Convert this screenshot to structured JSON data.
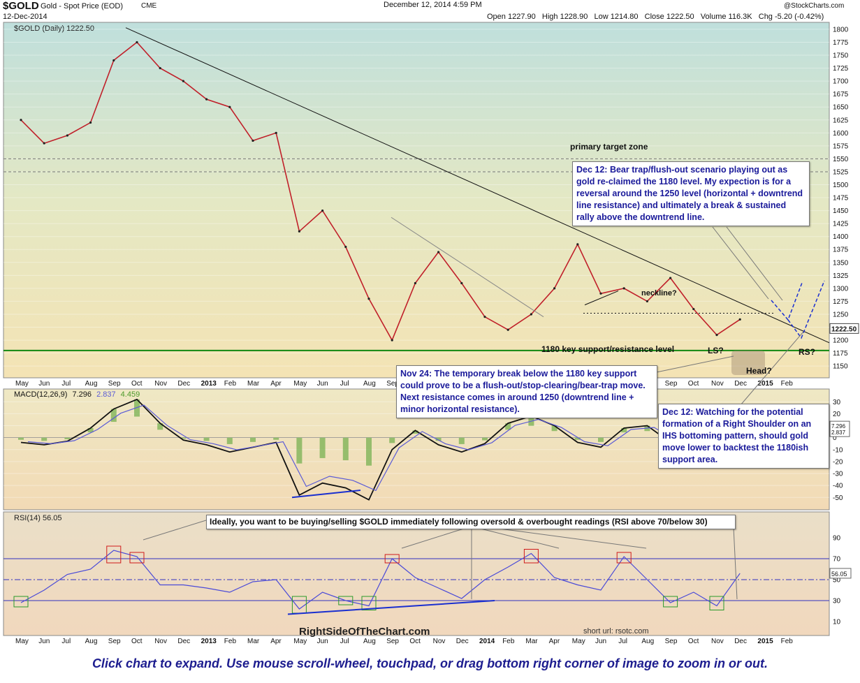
{
  "header": {
    "ticker": "$GOLD",
    "name": "Gold - Spot Price (EOD)",
    "exchange": "CME",
    "date": "12-Dec-2014",
    "timestamp": "December 12, 2014 4:59 PM",
    "source": "@StockCharts.com",
    "ohlc": "Open 1227.90   High 1228.90   Low 1214.80   Close 1222.50   Volume 116.3K   Chg -5.20 (-0.42%)"
  },
  "chart_data": [
    {
      "type": "line",
      "title": "$GOLD (Daily) 1222.50",
      "y_ticks": [
        1150,
        1175,
        1200,
        1225,
        1250,
        1275,
        1300,
        1325,
        1350,
        1375,
        1400,
        1425,
        1450,
        1475,
        1500,
        1525,
        1550,
        1575,
        1600,
        1625,
        1650,
        1675,
        1700,
        1725,
        1750,
        1775,
        1800
      ],
      "ylim": [
        1130,
        1808
      ],
      "last_value_label": "1222.50",
      "x_labels": [
        "May",
        "Jun",
        "Jul",
        "Aug",
        "Sep",
        "Oct",
        "Nov",
        "Dec",
        "2013",
        "Feb",
        "Mar",
        "Apr",
        "May",
        "Jun",
        "Jul",
        "Aug",
        "Sep",
        "Oct",
        "Nov",
        "Dec",
        "2014",
        "Feb",
        "Mar",
        "Apr",
        "May",
        "Jun",
        "Jul",
        "Aug",
        "Sep",
        "Oct",
        "Nov",
        "Dec",
        "2015",
        "Feb"
      ],
      "x": [
        "2012-05",
        "2012-06",
        "2012-07",
        "2012-08",
        "2012-09",
        "2012-10",
        "2012-11",
        "2012-12",
        "2013-01",
        "2013-02",
        "2013-03",
        "2013-04",
        "2013-05",
        "2013-06",
        "2013-07",
        "2013-08",
        "2013-09",
        "2013-10",
        "2013-11",
        "2013-12",
        "2014-01",
        "2014-02",
        "2014-03",
        "2014-04",
        "2014-05",
        "2014-06",
        "2014-07",
        "2014-08",
        "2014-09",
        "2014-10",
        "2014-11",
        "2014-12"
      ],
      "series": [
        {
          "values": [
            1625,
            1580,
            1595,
            1620,
            1740,
            1775,
            1725,
            1700,
            1665,
            1650,
            1585,
            1600,
            1410,
            1450,
            1380,
            1280,
            1200,
            1310,
            1370,
            1310,
            1245,
            1220,
            1250,
            1300,
            1385,
            1290,
            1300,
            1275,
            1320,
            1260,
            1210,
            1240
          ]
        }
      ],
      "annotations": {
        "target_zone": "primary target zone",
        "neckline": "neckline?",
        "support_label": "1180 key support/resistance level",
        "ls": "LS?",
        "head": "Head?",
        "rs": "RS?",
        "support_level": 1180,
        "target_zone_range": [
          1525,
          1550
        ],
        "neckline_level": 1252
      }
    },
    {
      "type": "line",
      "title": "MACD(12,26,9) 7.296, 2.837, 4.459",
      "series_labels": [
        "MACD(12,26,9)",
        "7.296",
        "2.837",
        "4.459"
      ],
      "y_ticks": [
        -50,
        -40,
        -30,
        -20,
        -10,
        0,
        10,
        20,
        30
      ],
      "ylim": [
        -58,
        36
      ],
      "value_labels": [
        "7.296",
        "2.837"
      ],
      "x": [
        "2012-05",
        "2012-06",
        "2012-07",
        "2012-08",
        "2012-09",
        "2012-10",
        "2012-11",
        "2012-12",
        "2013-01",
        "2013-02",
        "2013-03",
        "2013-04",
        "2013-05",
        "2013-06",
        "2013-07",
        "2013-08",
        "2013-09",
        "2013-10",
        "2013-11",
        "2013-12",
        "2014-01",
        "2014-02",
        "2014-03",
        "2014-04",
        "2014-05",
        "2014-06",
        "2014-07",
        "2014-08",
        "2014-09",
        "2014-10",
        "2014-11",
        "2014-12"
      ],
      "series": [
        {
          "values": [
            -4,
            -6,
            -3,
            8,
            24,
            32,
            12,
            -2,
            -6,
            -12,
            -8,
            -4,
            -48,
            -38,
            -42,
            -52,
            -10,
            6,
            -6,
            -12,
            -5,
            12,
            18,
            10,
            -4,
            -8,
            8,
            10,
            -4,
            -12,
            -10,
            7
          ]
        }
      ]
    },
    {
      "type": "line",
      "title": "RSI(14) 56.05",
      "y_ticks": [
        10,
        30,
        50,
        70,
        90
      ],
      "ylim": [
        0,
        100
      ],
      "levels": [
        30,
        50,
        70
      ],
      "last_value_label": "56.05",
      "x": [
        "2012-05",
        "2012-06",
        "2012-07",
        "2012-08",
        "2012-09",
        "2012-10",
        "2012-11",
        "2012-12",
        "2013-01",
        "2013-02",
        "2013-03",
        "2013-04",
        "2013-05",
        "2013-06",
        "2013-07",
        "2013-08",
        "2013-09",
        "2013-10",
        "2013-11",
        "2013-12",
        "2014-01",
        "2014-02",
        "2014-03",
        "2014-04",
        "2014-05",
        "2014-06",
        "2014-07",
        "2014-08",
        "2014-09",
        "2014-10",
        "2014-11",
        "2014-12"
      ],
      "series": [
        {
          "values": [
            28,
            40,
            55,
            60,
            78,
            72,
            45,
            45,
            42,
            38,
            48,
            50,
            22,
            38,
            30,
            25,
            70,
            52,
            42,
            32,
            50,
            62,
            75,
            52,
            45,
            40,
            72,
            50,
            28,
            38,
            25,
            56
          ]
        }
      ]
    }
  ],
  "notes": {
    "dec12_top": "Dec 12: Bear trap/flush-out scenario playing out as gold re-claimed the 1180 level. My expection is for a reversal around the 1250 level (horizontal + downtrend line resistance) and ultimately a break & sustained rally above the downtrend line.",
    "nov24": "Nov 24: The temporary break below the 1180 key support could prove to be a flush-out/stop-clearing/bear-trap move. Next resistance comes in around 1250 (downtrend line + minor horizontal resistance).",
    "dec12_rs": "Dec 12: Watching for the potential formation of a Right Shoulder on an IHS bottoming pattern, should gold move lower to backtest the 1180ish support area.",
    "rsi_ideal": "Ideally, you want to be buying/selling $GOLD immediately following oversold & overbought readings (RSI above 70/below 30)"
  },
  "branding": {
    "site": "RightSideOfTheChart.com",
    "short_url": "short url: rsotc.com"
  },
  "footer": "Click chart to expand. Use mouse scroll-wheel, touchpad, or drag bottom right corner of image to zoom in or out."
}
